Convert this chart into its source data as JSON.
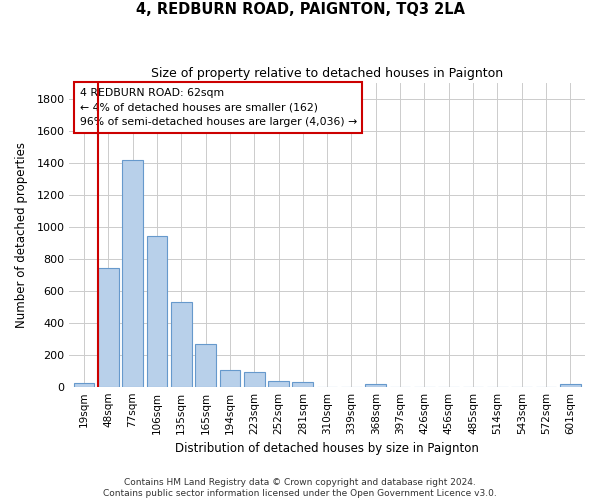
{
  "title": "4, REDBURN ROAD, PAIGNTON, TQ3 2LA",
  "subtitle": "Size of property relative to detached houses in Paignton",
  "xlabel": "Distribution of detached houses by size in Paignton",
  "ylabel": "Number of detached properties",
  "bar_labels": [
    "19sqm",
    "48sqm",
    "77sqm",
    "106sqm",
    "135sqm",
    "165sqm",
    "194sqm",
    "223sqm",
    "252sqm",
    "281sqm",
    "310sqm",
    "339sqm",
    "368sqm",
    "397sqm",
    "426sqm",
    "456sqm",
    "485sqm",
    "514sqm",
    "543sqm",
    "572sqm",
    "601sqm"
  ],
  "bar_values": [
    20,
    740,
    1420,
    940,
    530,
    265,
    105,
    90,
    38,
    28,
    0,
    0,
    15,
    0,
    0,
    0,
    0,
    0,
    0,
    0,
    15
  ],
  "bar_color": "#b8d0ea",
  "bar_edge_color": "#6699cc",
  "vline_color": "#cc0000",
  "vline_pos": 0.575,
  "annotation_text": "4 REDBURN ROAD: 62sqm\n← 4% of detached houses are smaller (162)\n96% of semi-detached houses are larger (4,036) →",
  "annotation_box_color": "#ffffff",
  "annotation_box_edge": "#cc0000",
  "ylim": [
    0,
    1900
  ],
  "yticks": [
    0,
    200,
    400,
    600,
    800,
    1000,
    1200,
    1400,
    1600,
    1800
  ],
  "footer": "Contains HM Land Registry data © Crown copyright and database right 2024.\nContains public sector information licensed under the Open Government Licence v3.0.",
  "bg_color": "#ffffff",
  "plot_bg_color": "#ffffff",
  "grid_color": "#cccccc"
}
